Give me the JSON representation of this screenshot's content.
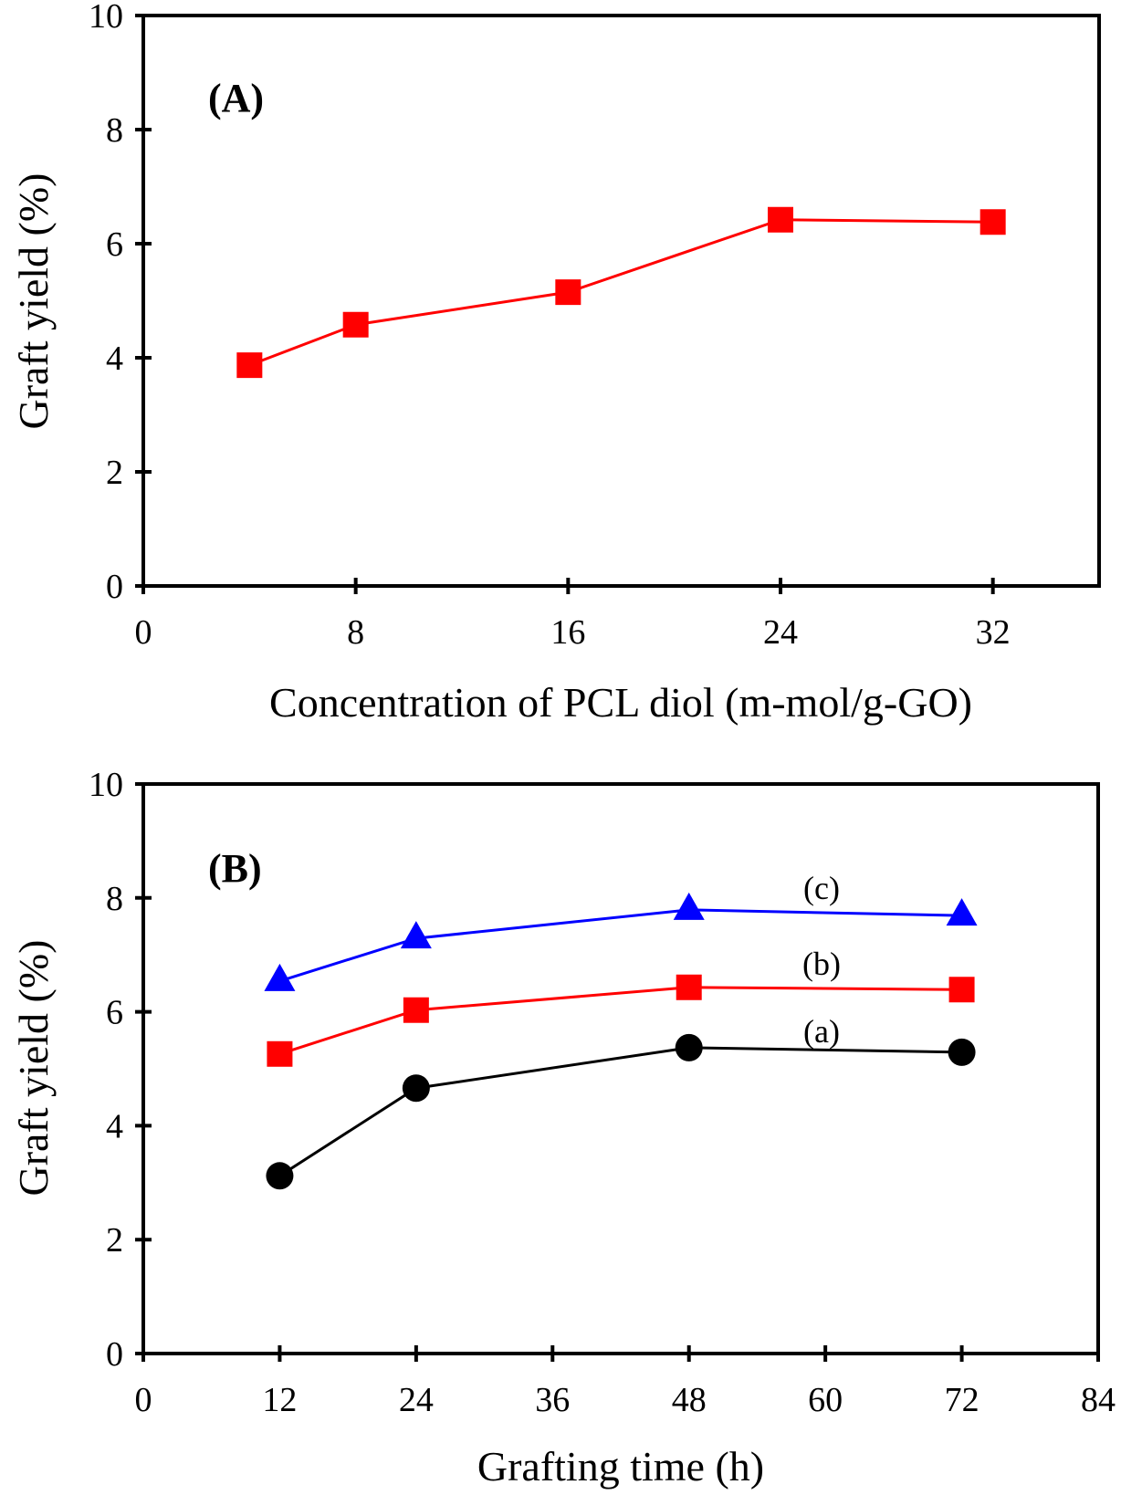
{
  "chart_data": [
    {
      "type": "line",
      "panel_label": "(A)",
      "xlabel": "Concentration of PCL diol (m-mol/g-GO)",
      "ylabel": "Graft yield (%)",
      "xlim": [
        0,
        36
      ],
      "ylim": [
        0,
        10
      ],
      "xticks": [
        0,
        8,
        16,
        24,
        32
      ],
      "yticks": [
        0,
        2,
        4,
        6,
        8,
        10
      ],
      "grid": false,
      "series": [
        {
          "name": "",
          "color": "#ff0000",
          "marker": "square",
          "x": [
            4,
            8,
            16,
            24,
            32
          ],
          "y": [
            3.87,
            4.58,
            5.15,
            6.42,
            6.38
          ]
        }
      ]
    },
    {
      "type": "line",
      "panel_label": "(B)",
      "xlabel": "Grafting time (h)",
      "ylabel": "Graft yield (%)",
      "xlim": [
        0,
        84
      ],
      "ylim": [
        0,
        10
      ],
      "xticks": [
        0,
        12,
        24,
        36,
        48,
        60,
        72,
        84
      ],
      "yticks": [
        0,
        2,
        4,
        6,
        8,
        10
      ],
      "grid": false,
      "series": [
        {
          "name": "(a)",
          "color": "#000000",
          "marker": "circle",
          "x": [
            12,
            24,
            48,
            72
          ],
          "y": [
            3.12,
            4.66,
            5.37,
            5.29
          ]
        },
        {
          "name": "(b)",
          "color": "#ff0000",
          "marker": "square",
          "x": [
            12,
            24,
            48,
            72
          ],
          "y": [
            5.26,
            6.03,
            6.43,
            6.39
          ]
        },
        {
          "name": "(c)",
          "color": "#0000ff",
          "marker": "triangle",
          "x": [
            12,
            24,
            48,
            72
          ],
          "y": [
            6.54,
            7.29,
            7.79,
            7.69
          ]
        }
      ]
    }
  ]
}
